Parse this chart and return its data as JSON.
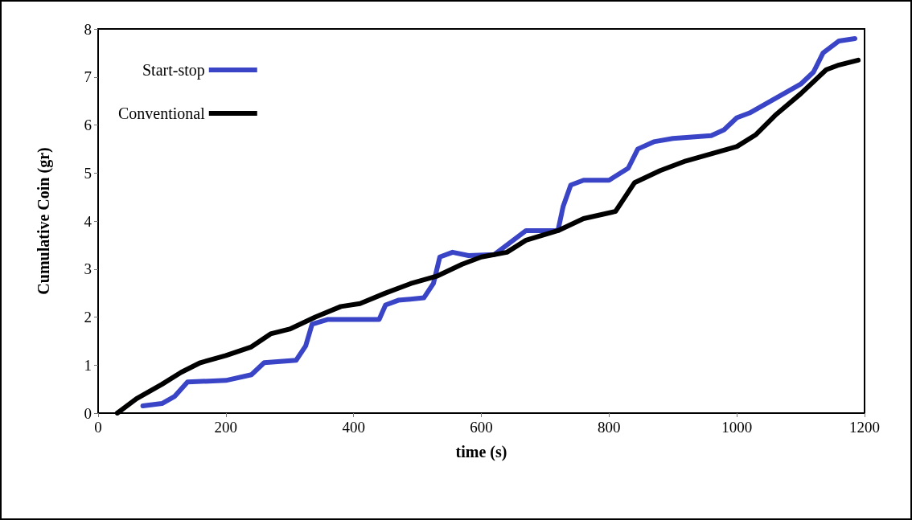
{
  "chart_data": {
    "type": "line",
    "xlabel": "time (s)",
    "ylabel": "Cumulative Coin (gr)",
    "xlim": [
      0,
      1200
    ],
    "xticks": [
      0,
      200,
      400,
      600,
      800,
      1000,
      1200
    ],
    "ylim": [
      0,
      8
    ],
    "yticks": [
      0,
      1,
      2,
      3,
      4,
      5,
      6,
      7,
      8
    ],
    "grid": false,
    "legend": "top left",
    "marker": "none",
    "line_style": "solid",
    "series": [
      {
        "name": "Start-stop",
        "color": "#3a44c6",
        "x": [
          70,
          100,
          120,
          140,
          200,
          240,
          260,
          310,
          325,
          335,
          360,
          440,
          450,
          470,
          510,
          525,
          535,
          555,
          580,
          620,
          650,
          670,
          720,
          728,
          740,
          760,
          800,
          830,
          845,
          870,
          900,
          960,
          980,
          1000,
          1020,
          1060,
          1100,
          1120,
          1135,
          1160,
          1185
        ],
        "values": [
          0.15,
          0.2,
          0.35,
          0.65,
          0.68,
          0.8,
          1.05,
          1.1,
          1.4,
          1.85,
          1.95,
          1.95,
          2.25,
          2.35,
          2.4,
          2.7,
          3.25,
          3.35,
          3.28,
          3.3,
          3.6,
          3.8,
          3.8,
          4.3,
          4.75,
          4.85,
          4.85,
          5.1,
          5.5,
          5.65,
          5.72,
          5.78,
          5.9,
          6.15,
          6.25,
          6.55,
          6.85,
          7.1,
          7.5,
          7.75,
          7.8
        ]
      },
      {
        "name": "Conventional",
        "color": "#000000",
        "x": [
          30,
          60,
          100,
          130,
          160,
          200,
          240,
          270,
          300,
          340,
          380,
          410,
          450,
          490,
          530,
          570,
          600,
          640,
          670,
          720,
          760,
          810,
          820,
          840,
          880,
          920,
          960,
          1000,
          1030,
          1060,
          1100,
          1140,
          1160,
          1190
        ],
        "values": [
          0,
          0.3,
          0.6,
          0.85,
          1.05,
          1.2,
          1.38,
          1.65,
          1.75,
          2.0,
          2.22,
          2.28,
          2.5,
          2.7,
          2.85,
          3.1,
          3.25,
          3.35,
          3.6,
          3.8,
          4.05,
          4.2,
          4.4,
          4.8,
          5.05,
          5.25,
          5.4,
          5.55,
          5.8,
          6.2,
          6.65,
          7.15,
          7.25,
          7.35
        ]
      }
    ]
  }
}
